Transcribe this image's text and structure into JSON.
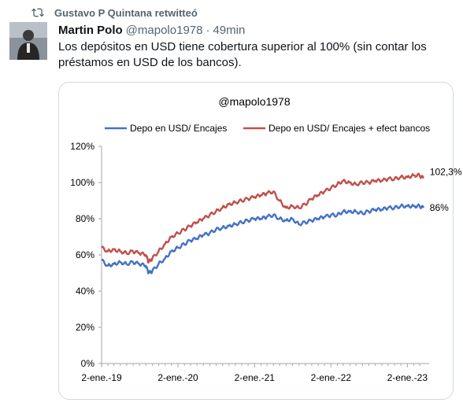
{
  "retweet": {
    "icon": "retweet-icon",
    "label": "Gustavo P Quintana retwitteó"
  },
  "tweet": {
    "name": "Martin Polo",
    "handle": "@mapolo1978",
    "separator": "·",
    "time": "49min",
    "text": "Los depósitos en USD tiene cobertura superior al 100% (sin contar los préstamos en USD de los bancos)."
  },
  "chart_data": {
    "type": "line",
    "title": "@mapolo1978",
    "xlabel": "",
    "ylabel": "",
    "x_ticks": [
      "2-ene.-19",
      "2-ene.-20",
      "2-ene.-21",
      "2-ene.-22",
      "2-ene.-23"
    ],
    "y_ticks": [
      "0%",
      "20%",
      "40%",
      "60%",
      "80%",
      "100%",
      "120%"
    ],
    "ylim": [
      0,
      120
    ],
    "xlim": [
      "2019-01-02",
      "2023-04-01"
    ],
    "grid": false,
    "legend_position": "top",
    "annotations": [
      {
        "text": "102,3%",
        "series": 1
      },
      {
        "text": "86%",
        "series": 0
      }
    ],
    "series": [
      {
        "name": "Depo en USD/ Encajes",
        "color": "#4472c4",
        "x": [
          "2019-01-02",
          "2019-02-01",
          "2019-03-01",
          "2019-04-01",
          "2019-05-01",
          "2019-06-01",
          "2019-07-01",
          "2019-08-01",
          "2019-08-15",
          "2019-09-01",
          "2019-10-01",
          "2019-11-01",
          "2019-12-01",
          "2020-01-02",
          "2020-02-01",
          "2020-03-01",
          "2020-04-01",
          "2020-05-01",
          "2020-06-01",
          "2020-07-01",
          "2020-08-01",
          "2020-09-01",
          "2020-10-01",
          "2020-11-01",
          "2020-12-01",
          "2021-01-02",
          "2021-02-01",
          "2021-03-01",
          "2021-04-01",
          "2021-05-01",
          "2021-06-01",
          "2021-07-01",
          "2021-08-01",
          "2021-09-01",
          "2021-10-01",
          "2021-11-01",
          "2021-12-01",
          "2022-01-02",
          "2022-02-01",
          "2022-03-01",
          "2022-04-01",
          "2022-05-01",
          "2022-06-01",
          "2022-07-01",
          "2022-08-01",
          "2022-09-01",
          "2022-10-01",
          "2022-11-01",
          "2022-12-01",
          "2023-01-02",
          "2023-02-01",
          "2023-03-01",
          "2023-03-20"
        ],
        "values": [
          57,
          54,
          55,
          56,
          55,
          56,
          55,
          54,
          50,
          51,
          55,
          58,
          62,
          64,
          66,
          68,
          69,
          71,
          72,
          74,
          75,
          76,
          77,
          78,
          79,
          80,
          80,
          81,
          82,
          80,
          79,
          80,
          77,
          78,
          79,
          80,
          81,
          82,
          82,
          84,
          84,
          84,
          83,
          84,
          85,
          85,
          86,
          86,
          87,
          87,
          87,
          87,
          86
        ]
      },
      {
        "name": "Depo en USD/ Encajes + efect bancos",
        "color": "#c0504d",
        "x": [
          "2019-01-02",
          "2019-02-01",
          "2019-03-01",
          "2019-04-01",
          "2019-05-01",
          "2019-06-01",
          "2019-07-01",
          "2019-08-01",
          "2019-08-15",
          "2019-09-01",
          "2019-10-01",
          "2019-11-01",
          "2019-12-01",
          "2020-01-02",
          "2020-02-01",
          "2020-03-01",
          "2020-04-01",
          "2020-05-01",
          "2020-06-01",
          "2020-07-01",
          "2020-08-01",
          "2020-09-01",
          "2020-10-01",
          "2020-11-01",
          "2020-12-01",
          "2021-01-02",
          "2021-02-01",
          "2021-03-01",
          "2021-04-01",
          "2021-05-01",
          "2021-06-01",
          "2021-07-01",
          "2021-08-01",
          "2021-09-01",
          "2021-10-01",
          "2021-11-01",
          "2021-12-01",
          "2022-01-02",
          "2022-02-01",
          "2022-03-01",
          "2022-04-01",
          "2022-05-01",
          "2022-06-01",
          "2022-07-01",
          "2022-08-01",
          "2022-09-01",
          "2022-10-01",
          "2022-11-01",
          "2022-12-01",
          "2023-01-02",
          "2023-02-01",
          "2023-03-01",
          "2023-03-20"
        ],
        "values": [
          64,
          62,
          63,
          62,
          61,
          62,
          61,
          60,
          56,
          58,
          62,
          66,
          70,
          72,
          74,
          76,
          78,
          80,
          82,
          84,
          86,
          88,
          89,
          90,
          91,
          92,
          93,
          94,
          95,
          90,
          86,
          87,
          86,
          88,
          91,
          93,
          95,
          97,
          99,
          101,
          100,
          99,
          100,
          100,
          101,
          101,
          102,
          102,
          103,
          103,
          104,
          104,
          102.3
        ]
      }
    ]
  }
}
